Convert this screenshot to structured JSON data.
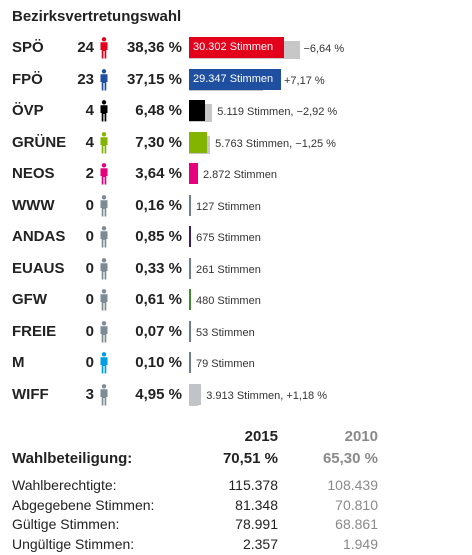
{
  "title": "Bezirksvertretungswahl",
  "parties": [
    {
      "name": "SPÖ",
      "seats": "24",
      "percent": "38,36 %",
      "votes_label": "30.302 Stimmen",
      "change": "−6,64 %",
      "share": 38.36,
      "prev_share": 45.0,
      "color": "#e3001b",
      "figure_color": "#e3001b",
      "label_inside": true
    },
    {
      "name": "FPÖ",
      "seats": "23",
      "percent": "37,15 %",
      "votes_label": "29.347 Stimmen",
      "change": "+7,17 %",
      "share": 37.15,
      "prev_share": 29.98,
      "color": "#1f4fa0",
      "figure_color": "#1f4fa0",
      "label_inside": true
    },
    {
      "name": "ÖVP",
      "seats": "4",
      "percent": "6,48 %",
      "votes_label": "5.119 Stimmen, −2,92 %",
      "change": "",
      "share": 6.48,
      "prev_share": 9.4,
      "color": "#000000",
      "figure_color": "#000000",
      "label_inside": false
    },
    {
      "name": "GRÜNE",
      "seats": "4",
      "percent": "7,30 %",
      "votes_label": "5.763 Stimmen, −1,25 %",
      "change": "",
      "share": 7.3,
      "prev_share": 8.55,
      "color": "#82b400",
      "figure_color": "#82b400",
      "label_inside": false
    },
    {
      "name": "NEOS",
      "seats": "2",
      "percent": "3,64 %",
      "votes_label": "2.872 Stimmen",
      "change": "",
      "share": 3.64,
      "prev_share": 0,
      "color": "#e6007e",
      "figure_color": "#e6007e",
      "label_inside": false
    },
    {
      "name": "WWW",
      "seats": "0",
      "percent": "0,16 %",
      "votes_label": "127 Stimmen",
      "change": "",
      "share": 0.16,
      "prev_share": 0,
      "color": "#6b7f8c",
      "figure_color": "#7d8b95",
      "label_inside": false
    },
    {
      "name": "ANDAS",
      "seats": "0",
      "percent": "0,85 %",
      "votes_label": "675 Stimmen",
      "change": "",
      "share": 0.85,
      "prev_share": 0,
      "color": "#3b1f6e",
      "figure_color": "#7d8b95",
      "label_inside": false
    },
    {
      "name": "EUAUS",
      "seats": "0",
      "percent": "0,33 %",
      "votes_label": "261 Stimmen",
      "change": "",
      "share": 0.33,
      "prev_share": 0,
      "color": "#6b7f8c",
      "figure_color": "#7d8b95",
      "label_inside": false
    },
    {
      "name": "GFW",
      "seats": "0",
      "percent": "0,61 %",
      "votes_label": "480 Stimmen",
      "change": "",
      "share": 0.61,
      "prev_share": 0,
      "color": "#3d8c2f",
      "figure_color": "#7d8b95",
      "label_inside": false
    },
    {
      "name": "FREIE",
      "seats": "0",
      "percent": "0,07 %",
      "votes_label": "53 Stimmen",
      "change": "",
      "share": 0.07,
      "prev_share": 0,
      "color": "#6b7f8c",
      "figure_color": "#7d8b95",
      "label_inside": false
    },
    {
      "name": "M",
      "seats": "0",
      "percent": "0,10 %",
      "votes_label": "79 Stimmen",
      "change": "",
      "share": 0.1,
      "prev_share": 0,
      "color": "#6b7f8c",
      "figure_color": "#009fe3",
      "label_inside": false
    },
    {
      "name": "WIFF",
      "seats": "3",
      "percent": "4,95 %",
      "votes_label": "3.913 Stimmen, +1,18 %",
      "change": "",
      "share": 4.95,
      "prev_share": 3.77,
      "color": "#c0c4c8",
      "figure_color": "#7d8b95",
      "label_inside": false
    }
  ],
  "stats": {
    "year_current": "2015",
    "year_previous": "2010",
    "turnout_label": "Wahlbeteiligung:",
    "turnout_current": "70,51 %",
    "turnout_previous": "65,30 %",
    "rows": [
      {
        "label": "Wahlberechtigte:",
        "current": "115.378",
        "previous": "108.439"
      },
      {
        "label": "Abgegebene Stimmen:",
        "current": "81.348",
        "previous": "70.810"
      },
      {
        "label": "Gültige Stimmen:",
        "current": "78.991",
        "previous": "68.861"
      },
      {
        "label": "Ungültige Stimmen:",
        "current": "2.357",
        "previous": "1.949"
      }
    ]
  }
}
